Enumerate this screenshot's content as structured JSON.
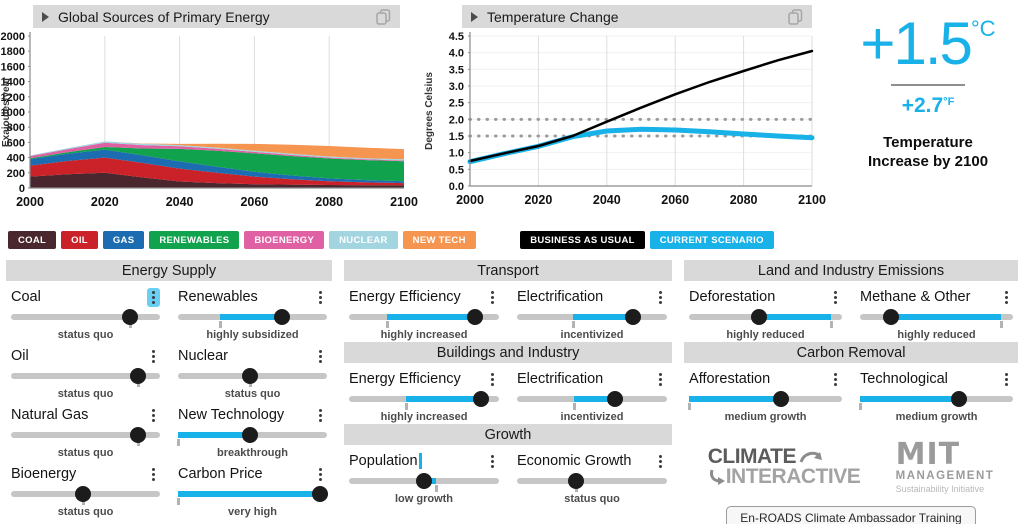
{
  "accent_color": "#18b1e8",
  "energy_header": {
    "title": "Global Sources of Primary Energy"
  },
  "temp_header": {
    "title": "Temperature Change"
  },
  "chart_data": [
    {
      "type": "area",
      "title": "Global Sources of Primary Energy",
      "xlabel": "",
      "ylabel": "Exajoules/year",
      "ylim": [
        0,
        2000
      ],
      "ytick_step": 200,
      "x": [
        2000,
        2010,
        2020,
        2030,
        2040,
        2050,
        2060,
        2070,
        2080,
        2090,
        2100
      ],
      "xticks": [
        2000,
        2020,
        2040,
        2060,
        2080,
        2100
      ],
      "grid": "vertical",
      "legend_position": "bottom",
      "series": [
        {
          "name": "Coal",
          "color": "#4a272e",
          "values": [
            150,
            180,
            200,
            140,
            85,
            65,
            50,
            45,
            40,
            37,
            35
          ]
        },
        {
          "name": "Oil",
          "color": "#cb2128",
          "values": [
            145,
            175,
            200,
            190,
            170,
            135,
            100,
            70,
            48,
            37,
            30
          ]
        },
        {
          "name": "Gas",
          "color": "#1b6cb0",
          "values": [
            85,
            95,
            105,
            100,
            95,
            80,
            65,
            50,
            38,
            30,
            25
          ]
        },
        {
          "name": "Renewables",
          "color": "#10a24c",
          "values": [
            12,
            20,
            35,
            90,
            165,
            210,
            240,
            255,
            262,
            263,
            262
          ]
        },
        {
          "name": "Bioenergy",
          "color": "#e060a4",
          "values": [
            28,
            40,
            55,
            45,
            35,
            27,
            20,
            15,
            12,
            10,
            10
          ]
        },
        {
          "name": "Nuclear",
          "color": "#a3d5e0",
          "values": [
            8,
            12,
            18,
            16,
            15,
            15,
            15,
            15,
            15,
            15,
            15
          ]
        },
        {
          "name": "New Tech",
          "color": "#f5954f",
          "values": [
            0,
            0,
            0,
            5,
            15,
            50,
            90,
            120,
            138,
            138,
            135
          ]
        }
      ],
      "legend": [
        {
          "label": "COAL",
          "color": "#4a272e"
        },
        {
          "label": "OIL",
          "color": "#cb2128"
        },
        {
          "label": "GAS",
          "color": "#1b6cb0"
        },
        {
          "label": "RENEWABLES",
          "color": "#10a24c"
        },
        {
          "label": "BIOENERGY",
          "color": "#e060a4"
        },
        {
          "label": "NUCLEAR",
          "color": "#a3d5e0"
        },
        {
          "label": "NEW TECH",
          "color": "#f5954f"
        }
      ]
    },
    {
      "type": "line",
      "title": "Temperature Change",
      "xlabel": "",
      "ylabel": "Degrees Celsius",
      "ylim": [
        0,
        4.5
      ],
      "ytick_step": 0.5,
      "x": [
        2000,
        2010,
        2020,
        2030,
        2040,
        2050,
        2060,
        2070,
        2080,
        2090,
        2100
      ],
      "xticks": [
        2000,
        2020,
        2040,
        2060,
        2080,
        2100
      ],
      "grid": "both",
      "reference_lines": [
        1.5,
        2.0
      ],
      "legend_position": "bottom",
      "series": [
        {
          "name": "Current Scenario",
          "color": "#18b1e8",
          "width": 5,
          "values": [
            0.73,
            0.97,
            1.19,
            1.48,
            1.65,
            1.7,
            1.68,
            1.63,
            1.56,
            1.5,
            1.45
          ]
        },
        {
          "name": "Business As Usual",
          "color": "#000000",
          "width": 2.5,
          "values": [
            0.75,
            0.98,
            1.2,
            1.5,
            1.93,
            2.35,
            2.75,
            3.12,
            3.45,
            3.77,
            4.05
          ]
        }
      ],
      "legend": [
        {
          "label": "BUSINESS AS USUAL",
          "color": "#000000"
        },
        {
          "label": "CURRENT SCENARIO",
          "color": "#18b1e8"
        }
      ]
    }
  ],
  "temperature_panel": {
    "celsius": "+1.5",
    "celsius_unit": "°C",
    "fahrenheit": "+2.7",
    "fahrenheit_unit": "°F",
    "caption": "Temperature Increase by 2100"
  },
  "columns": [
    {
      "sections": [
        {
          "title": "Energy Supply",
          "sliders": [
            {
              "label": "Coal",
              "status": "status quo",
              "handle": 80,
              "default": 80,
              "menu_highlight": true
            },
            {
              "label": "Renewables",
              "status": "highly subsidized",
              "handle": 70,
              "default": 28
            },
            {
              "label": "Oil",
              "status": "status quo",
              "handle": 85,
              "default": 85
            },
            {
              "label": "Nuclear",
              "status": "status quo",
              "handle": 48,
              "default": 48
            },
            {
              "label": "Natural Gas",
              "status": "status quo",
              "handle": 85,
              "default": 85
            },
            {
              "label": "New Technology",
              "status": "breakthrough",
              "handle": 48,
              "default": 0
            },
            {
              "label": "Bioenergy",
              "status": "status quo",
              "handle": 48,
              "default": 48
            },
            {
              "label": "Carbon Price",
              "status": "very high",
              "handle": 95,
              "default": 0
            }
          ]
        }
      ]
    },
    {
      "sections": [
        {
          "title": "Transport",
          "sliders": [
            {
              "label": "Energy Efficiency",
              "status": "highly increased",
              "handle": 84,
              "default": 25
            },
            {
              "label": "Electrification",
              "status": "incentivized",
              "handle": 77,
              "default": 37
            }
          ]
        },
        {
          "title": "Buildings and Industry",
          "sliders": [
            {
              "label": "Energy Efficiency",
              "status": "highly increased",
              "handle": 88,
              "default": 38
            },
            {
              "label": "Electrification",
              "status": "incentivized",
              "handle": 65,
              "default": 38
            }
          ]
        },
        {
          "title": "Growth",
          "sliders": [
            {
              "label": "Population",
              "status": "low growth",
              "handle": 50,
              "default": 58,
              "cursor": true
            },
            {
              "label": "Economic Growth",
              "status": "status quo",
              "handle": 39,
              "default": 39
            }
          ]
        }
      ]
    },
    {
      "sections": [
        {
          "title": "Land and Industry Emissions",
          "sliders": [
            {
              "label": "Deforestation",
              "status": "highly reduced",
              "handle": 46,
              "default": 93
            },
            {
              "label": "Methane & Other",
              "status": "highly reduced",
              "handle": 20,
              "default": 92
            }
          ]
        },
        {
          "title": "Carbon Removal",
          "sliders": [
            {
              "label": "Afforestation",
              "status": "medium growth",
              "handle": 60,
              "default": 0
            },
            {
              "label": "Technological",
              "status": "medium growth",
              "handle": 65,
              "default": 0
            }
          ]
        }
      ]
    }
  ],
  "branding": {
    "climate_line1": "CLIMATE",
    "climate_line2": "INTERACTIVE",
    "mit": "MIT",
    "mit_line2": "MANAGEMENT",
    "mit_line3": "Sustainability Initiative"
  },
  "training_button": "En-ROADS Climate Ambassador Training"
}
